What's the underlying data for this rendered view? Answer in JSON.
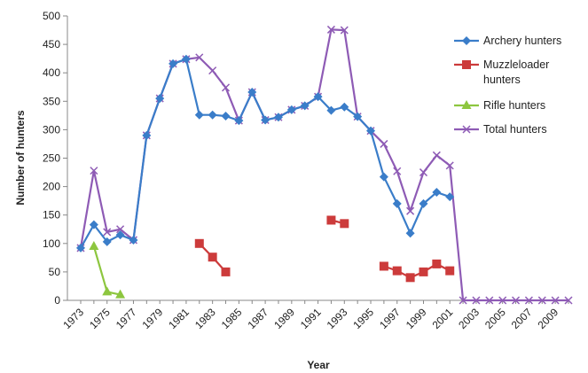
{
  "chart_data": {
    "type": "line",
    "xlabel": "Year",
    "ylabel": "Number of hunters",
    "ylim": [
      0,
      500
    ],
    "xlim": [
      1973,
      2010
    ],
    "yticks": [
      0,
      50,
      100,
      150,
      200,
      250,
      300,
      350,
      400,
      450,
      500
    ],
    "xtick_labels": [
      "1973",
      "1975",
      "1977",
      "1979",
      "1981",
      "1983",
      "1985",
      "1987",
      "1989",
      "1991",
      "1993",
      "1995",
      "1997",
      "1999",
      "2001",
      "2003",
      "2005",
      "2007",
      "2009"
    ],
    "grid": false,
    "legend_position": "right",
    "series": [
      {
        "name": "Archery hunters",
        "color": "#3a7dc9",
        "marker": "diamond",
        "segments": [
          [
            [
              1973,
              92
            ],
            [
              1974,
              133
            ],
            [
              1975,
              103
            ],
            [
              1976,
              115
            ],
            [
              1977,
              106
            ],
            [
              1978,
              290
            ],
            [
              1979,
              355
            ],
            [
              1980,
              416
            ],
            [
              1981,
              424
            ],
            [
              1982,
              326
            ],
            [
              1983,
              326
            ],
            [
              1984,
              324
            ],
            [
              1985,
              316
            ],
            [
              1986,
              366
            ],
            [
              1987,
              317
            ],
            [
              1988,
              322
            ],
            [
              1989,
              335
            ],
            [
              1990,
              342
            ],
            [
              1991,
              358
            ],
            [
              1992,
              334
            ],
            [
              1993,
              340
            ],
            [
              1994,
              323
            ],
            [
              1995,
              298
            ],
            [
              1996,
              217
            ],
            [
              1997,
              170
            ],
            [
              1998,
              118
            ],
            [
              1999,
              170
            ],
            [
              2000,
              190
            ],
            [
              2001,
              182
            ]
          ]
        ]
      },
      {
        "name": "Muzzleloader hunters",
        "name_lines": [
          "Muzzleloader",
          "hunters"
        ],
        "color": "#cc3b3b",
        "marker": "square",
        "segments": [
          [
            [
              1982,
              100
            ],
            [
              1983,
              76
            ],
            [
              1984,
              50
            ]
          ],
          [
            [
              1992,
              141
            ],
            [
              1993,
              135
            ]
          ],
          [
            [
              1996,
              60
            ],
            [
              1997,
              52
            ],
            [
              1998,
              40
            ],
            [
              1999,
              50
            ],
            [
              2000,
              64
            ],
            [
              2001,
              52
            ]
          ]
        ]
      },
      {
        "name": "Rifle hunters",
        "color": "#8dc63f",
        "marker": "triangle",
        "segments": [
          [
            [
              1974,
              95
            ],
            [
              1975,
              15
            ],
            [
              1976,
              10
            ]
          ]
        ]
      },
      {
        "name": "Total hunters",
        "color": "#8e5bb5",
        "marker": "x",
        "segments": [
          [
            [
              1973,
              92
            ],
            [
              1974,
              228
            ],
            [
              1975,
              120
            ],
            [
              1976,
              125
            ],
            [
              1977,
              106
            ],
            [
              1978,
              290
            ],
            [
              1979,
              355
            ],
            [
              1980,
              416
            ],
            [
              1981,
              424
            ],
            [
              1982,
              427
            ],
            [
              1983,
              404
            ],
            [
              1984,
              374
            ],
            [
              1985,
              316
            ],
            [
              1986,
              366
            ],
            [
              1987,
              317
            ],
            [
              1988,
              322
            ],
            [
              1989,
              335
            ],
            [
              1990,
              342
            ],
            [
              1991,
              358
            ],
            [
              1992,
              476
            ],
            [
              1993,
              475
            ],
            [
              1994,
              323
            ],
            [
              1995,
              298
            ],
            [
              1996,
              275
            ],
            [
              1997,
              227
            ],
            [
              1998,
              157
            ],
            [
              1999,
              225
            ],
            [
              2000,
              255
            ],
            [
              2001,
              237
            ],
            [
              2002,
              0
            ],
            [
              2003,
              0
            ],
            [
              2004,
              0
            ],
            [
              2005,
              0
            ],
            [
              2006,
              0
            ],
            [
              2007,
              0
            ],
            [
              2008,
              0
            ],
            [
              2009,
              0
            ],
            [
              2010,
              0
            ]
          ]
        ]
      }
    ]
  }
}
